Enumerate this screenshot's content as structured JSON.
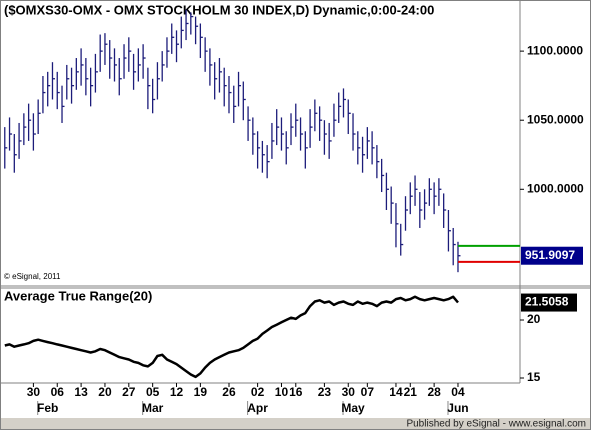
{
  "chart_data": [
    {
      "type": "ohlc",
      "title": "($OMXS30-OMX - OMX STOCKHOLM 30 INDEX,D) Dynamic,0:00-24:00",
      "annotation": "© eSignal, 2011",
      "color": "#1c1c7a",
      "last_box_color": "#00008b",
      "xlim": [
        -1,
        108
      ],
      "ylim": [
        930,
        1137
      ],
      "yticks": [
        {
          "value": 1000,
          "label": "1000.0000"
        },
        {
          "value": 1050,
          "label": "1050.0000"
        },
        {
          "value": 1100,
          "label": "1100.0000"
        }
      ],
      "high": [
        1045,
        1052,
        1040,
        1048,
        1055,
        1062,
        1055,
        1065,
        1082,
        1085,
        1092,
        1085,
        1075,
        1090,
        1088,
        1095,
        1102,
        1095,
        1088,
        1098,
        1112,
        1113,
        1108,
        1102,
        1095,
        1105,
        1110,
        1098,
        1102,
        1105,
        1088,
        1080,
        1092,
        1100,
        1110,
        1120,
        1115,
        1125,
        1130,
        1128,
        1125,
        1120,
        1110,
        1102,
        1092,
        1095,
        1088,
        1082,
        1075,
        1085,
        1078,
        1060,
        1052,
        1042,
        1035,
        1032,
        1048,
        1058,
        1052,
        1042,
        1055,
        1062,
        1052,
        1042,
        1058,
        1065,
        1060,
        1050,
        1048,
        1062,
        1070,
        1073,
        1065,
        1055,
        1042,
        1038,
        1045,
        1042,
        1032,
        1022,
        1012,
        1002,
        990,
        975,
        995,
        1005,
        1010,
        998,
        1000,
        1008,
        1005,
        1008,
        997,
        985,
        972,
        962
      ],
      "low": [
        1015,
        1028,
        1012,
        1022,
        1032,
        1035,
        1028,
        1040,
        1055,
        1060,
        1065,
        1058,
        1048,
        1065,
        1062,
        1072,
        1075,
        1068,
        1060,
        1070,
        1085,
        1090,
        1080,
        1078,
        1068,
        1080,
        1085,
        1072,
        1078,
        1080,
        1058,
        1055,
        1065,
        1078,
        1088,
        1098,
        1092,
        1102,
        1108,
        1112,
        1105,
        1095,
        1085,
        1075,
        1065,
        1070,
        1060,
        1055,
        1048,
        1060,
        1050,
        1035,
        1025,
        1015,
        1012,
        1008,
        1022,
        1032,
        1028,
        1018,
        1032,
        1038,
        1028,
        1015,
        1030,
        1042,
        1035,
        1025,
        1022,
        1038,
        1048,
        1052,
        1040,
        1028,
        1018,
        1012,
        1022,
        1018,
        1008,
        998,
        985,
        975,
        958,
        952,
        970,
        982,
        988,
        972,
        978,
        988,
        982,
        988,
        972,
        955,
        945,
        940
      ],
      "close": [
        1030,
        1040,
        1025,
        1035,
        1045,
        1050,
        1040,
        1055,
        1070,
        1075,
        1080,
        1070,
        1060,
        1080,
        1075,
        1085,
        1090,
        1080,
        1075,
        1085,
        1100,
        1105,
        1095,
        1090,
        1080,
        1095,
        1100,
        1085,
        1090,
        1095,
        1075,
        1065,
        1080,
        1090,
        1100,
        1110,
        1105,
        1115,
        1120,
        1125,
        1118,
        1110,
        1100,
        1090,
        1080,
        1085,
        1075,
        1070,
        1060,
        1075,
        1065,
        1050,
        1040,
        1030,
        1025,
        1020,
        1035,
        1045,
        1040,
        1030,
        1045,
        1050,
        1040,
        1030,
        1045,
        1055,
        1050,
        1040,
        1035,
        1050,
        1060,
        1065,
        1055,
        1040,
        1030,
        1025,
        1035,
        1030,
        1020,
        1010,
        1000,
        990,
        975,
        960,
        985,
        995,
        1000,
        985,
        990,
        1000,
        995,
        1000,
        985,
        970,
        960,
        951.9097
      ],
      "reference_lines": [
        {
          "value": 959,
          "color": "#00a000"
        },
        {
          "value": 947.5,
          "color": "#e00000"
        }
      ]
    },
    {
      "type": "line",
      "title": "Average True Range(20)",
      "color": "#000000",
      "last_box_color": "#000000",
      "xlim": [
        -1,
        108
      ],
      "ylim": [
        14.57,
        22.76
      ],
      "yticks": [
        15,
        20
      ],
      "values": [
        17.8,
        17.9,
        17.7,
        17.8,
        17.9,
        18.0,
        18.2,
        18.3,
        18.2,
        18.1,
        18.0,
        17.9,
        17.8,
        17.7,
        17.6,
        17.5,
        17.4,
        17.3,
        17.2,
        17.3,
        17.5,
        17.4,
        17.2,
        17.0,
        16.8,
        16.7,
        16.6,
        16.4,
        16.3,
        16.1,
        16.0,
        16.3,
        16.9,
        17.0,
        16.6,
        16.4,
        16.2,
        15.9,
        15.6,
        15.3,
        15.1,
        15.4,
        15.9,
        16.3,
        16.6,
        16.8,
        17.0,
        17.2,
        17.3,
        17.4,
        17.6,
        17.9,
        18.2,
        18.4,
        18.8,
        19.1,
        19.4,
        19.6,
        19.8,
        20.0,
        20.2,
        20.1,
        20.4,
        20.6,
        21.2,
        21.6,
        21.7,
        21.5,
        21.6,
        21.3,
        21.5,
        21.6,
        21.4,
        21.3,
        21.6,
        21.4,
        21.5,
        21.4,
        21.2,
        21.5,
        21.6,
        21.5,
        21.8,
        21.9,
        21.7,
        21.8,
        22.0,
        21.8,
        21.7,
        21.8,
        21.9,
        21.8,
        21.7,
        21.8,
        22.0,
        21.5058
      ],
      "xticks": [
        {
          "value": 6,
          "label": "30"
        },
        {
          "value": 11,
          "label": "06"
        },
        {
          "value": 16,
          "label": "13"
        },
        {
          "value": 21,
          "label": "20"
        },
        {
          "value": 26,
          "label": "27"
        },
        {
          "value": 31,
          "label": "05"
        },
        {
          "value": 36,
          "label": "12"
        },
        {
          "value": 41,
          "label": "19"
        },
        {
          "value": 47,
          "label": "26"
        },
        {
          "value": 53,
          "label": "02"
        },
        {
          "value": 58,
          "label": "10"
        },
        {
          "value": 61,
          "label": "16"
        },
        {
          "value": 67,
          "label": "23"
        },
        {
          "value": 72,
          "label": "30"
        },
        {
          "value": 76,
          "label": "07"
        },
        {
          "value": 82,
          "label": "14"
        },
        {
          "value": 85,
          "label": "21"
        },
        {
          "value": 90,
          "label": "28"
        },
        {
          "value": 95,
          "label": "04"
        }
      ],
      "month_ticks": [
        {
          "value": 9,
          "label": "Feb"
        },
        {
          "value": 31,
          "label": "Mar"
        },
        {
          "value": 53,
          "label": "Apr"
        },
        {
          "value": 73,
          "label": "May"
        },
        {
          "value": 95,
          "label": "Jun"
        }
      ]
    }
  ],
  "footer": "Published by eSignal - www.esignal.com"
}
